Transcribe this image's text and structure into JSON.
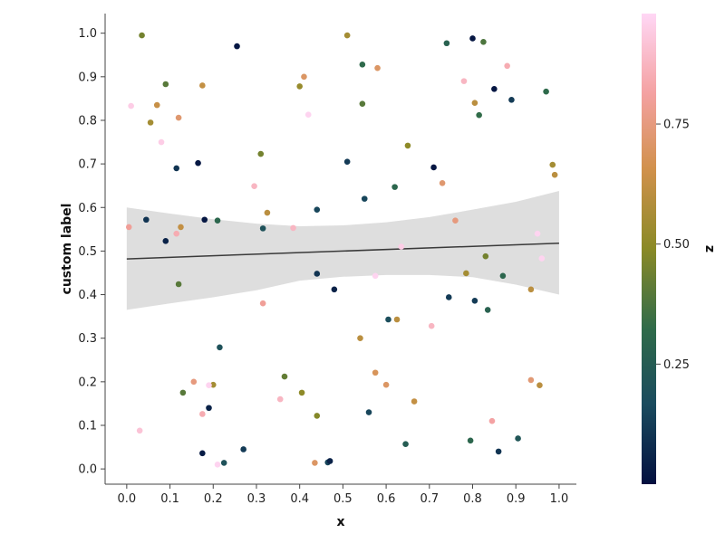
{
  "chart_data": {
    "type": "scatter",
    "xlabel": "x",
    "ylabel": "custom label",
    "colorbar_label": "z",
    "xlim": [
      -0.05,
      1.04
    ],
    "ylim": [
      -0.035,
      1.045
    ],
    "colorbar_lim": [
      0.0,
      0.98
    ],
    "x_ticks": [
      "0.0",
      "0.1",
      "0.2",
      "0.3",
      "0.4",
      "0.5",
      "0.6",
      "0.7",
      "0.8",
      "0.9",
      "1.0"
    ],
    "y_ticks": [
      "0.0",
      "0.1",
      "0.2",
      "0.3",
      "0.4",
      "0.5",
      "0.6",
      "0.7",
      "0.8",
      "0.9",
      "1.0"
    ],
    "colorbar_ticks": [
      "0.25",
      "0.50",
      "0.75"
    ],
    "grid": false,
    "colormap": [
      "#03103f",
      "#1a4b5e",
      "#2f6b4a",
      "#8a8a26",
      "#d1914c",
      "#f4a1a1",
      "#ffd7f5"
    ],
    "regression_line": {
      "x": [
        0.0,
        1.0
      ],
      "y": [
        0.482,
        0.518
      ]
    },
    "confidence_band": {
      "x": [
        0.0,
        0.1,
        0.2,
        0.3,
        0.4,
        0.5,
        0.6,
        0.7,
        0.8,
        0.9,
        1.0
      ],
      "upper": [
        0.6,
        0.586,
        0.573,
        0.563,
        0.557,
        0.559,
        0.566,
        0.578,
        0.595,
        0.613,
        0.638
      ],
      "lower": [
        0.365,
        0.38,
        0.394,
        0.41,
        0.432,
        0.441,
        0.445,
        0.445,
        0.44,
        0.423,
        0.4
      ]
    },
    "points": [
      {
        "x": 0.035,
        "y": 0.995,
        "z": 0.45
      },
      {
        "x": 0.255,
        "y": 0.97,
        "z": 0.02
      },
      {
        "x": 0.51,
        "y": 0.995,
        "z": 0.55
      },
      {
        "x": 0.8,
        "y": 0.988,
        "z": 0.02
      },
      {
        "x": 0.74,
        "y": 0.977,
        "z": 0.28
      },
      {
        "x": 0.825,
        "y": 0.98,
        "z": 0.38
      },
      {
        "x": 0.545,
        "y": 0.928,
        "z": 0.32
      },
      {
        "x": 0.58,
        "y": 0.92,
        "z": 0.7
      },
      {
        "x": 0.88,
        "y": 0.925,
        "z": 0.85
      },
      {
        "x": 0.41,
        "y": 0.9,
        "z": 0.7
      },
      {
        "x": 0.4,
        "y": 0.878,
        "z": 0.52
      },
      {
        "x": 0.09,
        "y": 0.883,
        "z": 0.4
      },
      {
        "x": 0.175,
        "y": 0.88,
        "z": 0.62
      },
      {
        "x": 0.78,
        "y": 0.89,
        "z": 0.88
      },
      {
        "x": 0.85,
        "y": 0.872,
        "z": 0.02
      },
      {
        "x": 0.97,
        "y": 0.866,
        "z": 0.32
      },
      {
        "x": 0.89,
        "y": 0.847,
        "z": 0.12
      },
      {
        "x": 0.805,
        "y": 0.84,
        "z": 0.6
      },
      {
        "x": 0.01,
        "y": 0.833,
        "z": 0.95
      },
      {
        "x": 0.07,
        "y": 0.835,
        "z": 0.63
      },
      {
        "x": 0.545,
        "y": 0.838,
        "z": 0.4
      },
      {
        "x": 0.42,
        "y": 0.813,
        "z": 0.97
      },
      {
        "x": 0.12,
        "y": 0.806,
        "z": 0.72
      },
      {
        "x": 0.055,
        "y": 0.795,
        "z": 0.55
      },
      {
        "x": 0.815,
        "y": 0.812,
        "z": 0.33
      },
      {
        "x": 0.08,
        "y": 0.75,
        "z": 0.95
      },
      {
        "x": 0.65,
        "y": 0.742,
        "z": 0.5
      },
      {
        "x": 0.31,
        "y": 0.723,
        "z": 0.45
      },
      {
        "x": 0.165,
        "y": 0.702,
        "z": 0.02
      },
      {
        "x": 0.51,
        "y": 0.705,
        "z": 0.12
      },
      {
        "x": 0.115,
        "y": 0.69,
        "z": 0.1
      },
      {
        "x": 0.71,
        "y": 0.692,
        "z": 0.02
      },
      {
        "x": 0.985,
        "y": 0.698,
        "z": 0.55
      },
      {
        "x": 0.99,
        "y": 0.675,
        "z": 0.6
      },
      {
        "x": 0.73,
        "y": 0.656,
        "z": 0.72
      },
      {
        "x": 0.295,
        "y": 0.649,
        "z": 0.88
      },
      {
        "x": 0.62,
        "y": 0.647,
        "z": 0.3
      },
      {
        "x": 0.55,
        "y": 0.62,
        "z": 0.15
      },
      {
        "x": 0.44,
        "y": 0.595,
        "z": 0.15
      },
      {
        "x": 0.325,
        "y": 0.588,
        "z": 0.6
      },
      {
        "x": 0.045,
        "y": 0.572,
        "z": 0.1
      },
      {
        "x": 0.18,
        "y": 0.572,
        "z": 0.02
      },
      {
        "x": 0.21,
        "y": 0.57,
        "z": 0.3
      },
      {
        "x": 0.76,
        "y": 0.57,
        "z": 0.75
      },
      {
        "x": 0.005,
        "y": 0.555,
        "z": 0.8
      },
      {
        "x": 0.125,
        "y": 0.555,
        "z": 0.62
      },
      {
        "x": 0.315,
        "y": 0.552,
        "z": 0.2
      },
      {
        "x": 0.385,
        "y": 0.553,
        "z": 0.88
      },
      {
        "x": 0.115,
        "y": 0.54,
        "z": 0.85
      },
      {
        "x": 0.95,
        "y": 0.54,
        "z": 0.97
      },
      {
        "x": 0.09,
        "y": 0.523,
        "z": 0.05
      },
      {
        "x": 0.635,
        "y": 0.51,
        "z": 0.95
      },
      {
        "x": 0.83,
        "y": 0.488,
        "z": 0.45
      },
      {
        "x": 0.96,
        "y": 0.483,
        "z": 0.97
      },
      {
        "x": 0.785,
        "y": 0.449,
        "z": 0.55
      },
      {
        "x": 0.44,
        "y": 0.448,
        "z": 0.1
      },
      {
        "x": 0.575,
        "y": 0.443,
        "z": 0.97
      },
      {
        "x": 0.87,
        "y": 0.443,
        "z": 0.3
      },
      {
        "x": 0.12,
        "y": 0.424,
        "z": 0.4
      },
      {
        "x": 0.48,
        "y": 0.412,
        "z": 0.05
      },
      {
        "x": 0.935,
        "y": 0.412,
        "z": 0.6
      },
      {
        "x": 0.745,
        "y": 0.394,
        "z": 0.12
      },
      {
        "x": 0.805,
        "y": 0.386,
        "z": 0.12
      },
      {
        "x": 0.315,
        "y": 0.38,
        "z": 0.8
      },
      {
        "x": 0.835,
        "y": 0.365,
        "z": 0.28
      },
      {
        "x": 0.605,
        "y": 0.343,
        "z": 0.18
      },
      {
        "x": 0.625,
        "y": 0.343,
        "z": 0.6
      },
      {
        "x": 0.705,
        "y": 0.328,
        "z": 0.88
      },
      {
        "x": 0.54,
        "y": 0.3,
        "z": 0.6
      },
      {
        "x": 0.215,
        "y": 0.279,
        "z": 0.2
      },
      {
        "x": 0.365,
        "y": 0.212,
        "z": 0.42
      },
      {
        "x": 0.575,
        "y": 0.221,
        "z": 0.68
      },
      {
        "x": 0.935,
        "y": 0.204,
        "z": 0.73
      },
      {
        "x": 0.155,
        "y": 0.2,
        "z": 0.75
      },
      {
        "x": 0.2,
        "y": 0.193,
        "z": 0.55
      },
      {
        "x": 0.19,
        "y": 0.192,
        "z": 0.97
      },
      {
        "x": 0.6,
        "y": 0.193,
        "z": 0.7
      },
      {
        "x": 0.955,
        "y": 0.192,
        "z": 0.6
      },
      {
        "x": 0.13,
        "y": 0.175,
        "z": 0.4
      },
      {
        "x": 0.405,
        "y": 0.175,
        "z": 0.5
      },
      {
        "x": 0.355,
        "y": 0.16,
        "z": 0.88
      },
      {
        "x": 0.665,
        "y": 0.155,
        "z": 0.62
      },
      {
        "x": 0.19,
        "y": 0.14,
        "z": 0.05
      },
      {
        "x": 0.175,
        "y": 0.126,
        "z": 0.85
      },
      {
        "x": 0.56,
        "y": 0.13,
        "z": 0.15
      },
      {
        "x": 0.44,
        "y": 0.122,
        "z": 0.48
      },
      {
        "x": 0.845,
        "y": 0.11,
        "z": 0.82
      },
      {
        "x": 0.03,
        "y": 0.088,
        "z": 0.92
      },
      {
        "x": 0.905,
        "y": 0.07,
        "z": 0.22
      },
      {
        "x": 0.795,
        "y": 0.065,
        "z": 0.3
      },
      {
        "x": 0.645,
        "y": 0.057,
        "z": 0.25
      },
      {
        "x": 0.27,
        "y": 0.045,
        "z": 0.12
      },
      {
        "x": 0.86,
        "y": 0.04,
        "z": 0.1
      },
      {
        "x": 0.175,
        "y": 0.036,
        "z": 0.03
      },
      {
        "x": 0.225,
        "y": 0.014,
        "z": 0.2
      },
      {
        "x": 0.21,
        "y": 0.01,
        "z": 0.97
      },
      {
        "x": 0.435,
        "y": 0.014,
        "z": 0.7
      },
      {
        "x": 0.465,
        "y": 0.015,
        "z": 0.15
      },
      {
        "x": 0.47,
        "y": 0.018,
        "z": 0.05
      }
    ]
  }
}
